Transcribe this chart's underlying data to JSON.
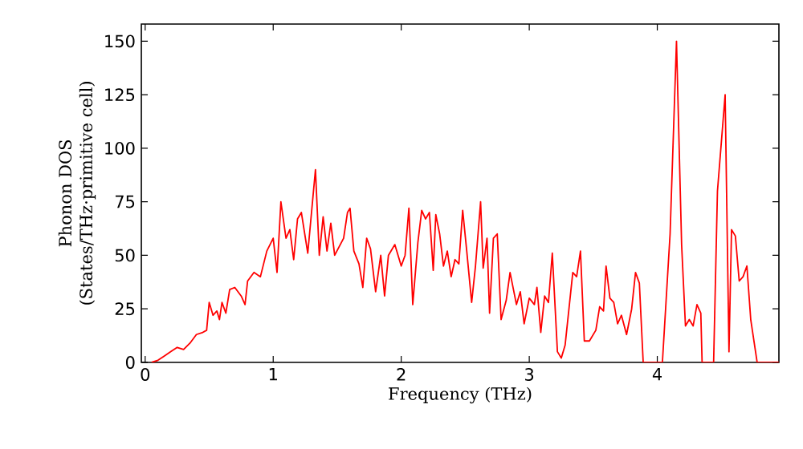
{
  "chart_data": {
    "type": "line",
    "xlabel": "Frequency (THz)",
    "ylabel": "Phonon DOS\n(States/THz·primitive cell)",
    "xlim": [
      -0.03,
      4.95
    ],
    "ylim": [
      0,
      158
    ],
    "xticks": [
      0,
      1,
      2,
      3,
      4
    ],
    "yticks": [
      0,
      25,
      50,
      75,
      100,
      125,
      150
    ],
    "grid": false,
    "marker": "none",
    "line_style": "solid",
    "series": [
      {
        "color": "#ff0000",
        "x": [
          0.05,
          0.1,
          0.15,
          0.2,
          0.25,
          0.3,
          0.35,
          0.4,
          0.45,
          0.48,
          0.5,
          0.53,
          0.56,
          0.58,
          0.6,
          0.63,
          0.66,
          0.7,
          0.75,
          0.78,
          0.8,
          0.85,
          0.9,
          0.95,
          1.0,
          1.03,
          1.06,
          1.1,
          1.13,
          1.16,
          1.19,
          1.22,
          1.27,
          1.33,
          1.36,
          1.39,
          1.42,
          1.45,
          1.48,
          1.55,
          1.58,
          1.6,
          1.63,
          1.67,
          1.7,
          1.73,
          1.76,
          1.8,
          1.84,
          1.87,
          1.9,
          1.95,
          2.0,
          2.03,
          2.06,
          2.09,
          2.13,
          2.16,
          2.19,
          2.22,
          2.25,
          2.27,
          2.3,
          2.33,
          2.36,
          2.39,
          2.42,
          2.45,
          2.48,
          2.51,
          2.55,
          2.58,
          2.62,
          2.64,
          2.67,
          2.69,
          2.72,
          2.75,
          2.78,
          2.82,
          2.85,
          2.9,
          2.93,
          2.96,
          3.0,
          3.04,
          3.06,
          3.09,
          3.12,
          3.15,
          3.18,
          3.22,
          3.25,
          3.28,
          3.31,
          3.34,
          3.37,
          3.4,
          3.43,
          3.47,
          3.52,
          3.55,
          3.58,
          3.6,
          3.63,
          3.66,
          3.69,
          3.72,
          3.76,
          3.8,
          3.83,
          3.86,
          3.89,
          4.04,
          4.1,
          4.15,
          4.19,
          4.22,
          4.25,
          4.28,
          4.31,
          4.34,
          4.35,
          4.44,
          4.47,
          4.53,
          4.56,
          4.58,
          4.61,
          4.64,
          4.67,
          4.7,
          4.73,
          4.78,
          4.95
        ],
        "values": [
          0,
          1,
          3,
          5,
          7,
          6,
          9,
          13,
          14,
          15,
          28,
          22,
          24,
          20,
          28,
          23,
          34,
          35,
          31,
          27,
          38,
          42,
          40,
          52,
          58,
          42,
          75,
          58,
          62,
          48,
          67,
          70,
          51,
          90,
          50,
          68,
          52,
          65,
          50,
          58,
          70,
          72,
          52,
          46,
          35,
          58,
          53,
          33,
          50,
          31,
          50,
          55,
          45,
          50,
          72,
          27,
          56,
          71,
          67,
          70,
          43,
          69,
          60,
          45,
          52,
          40,
          48,
          46,
          71,
          53,
          28,
          45,
          75,
          44,
          58,
          23,
          58,
          60,
          20,
          29,
          42,
          27,
          33,
          18,
          30,
          27,
          35,
          14,
          31,
          28,
          51,
          5,
          2,
          8,
          25,
          42,
          40,
          52,
          10,
          10,
          15,
          26,
          24,
          45,
          30,
          28,
          18,
          22,
          13,
          25,
          42,
          37,
          0,
          0,
          60,
          150,
          55,
          17,
          20,
          17,
          27,
          23,
          0,
          0,
          80,
          125,
          5,
          62,
          59,
          38,
          40,
          45,
          20,
          0,
          0
        ]
      }
    ]
  }
}
